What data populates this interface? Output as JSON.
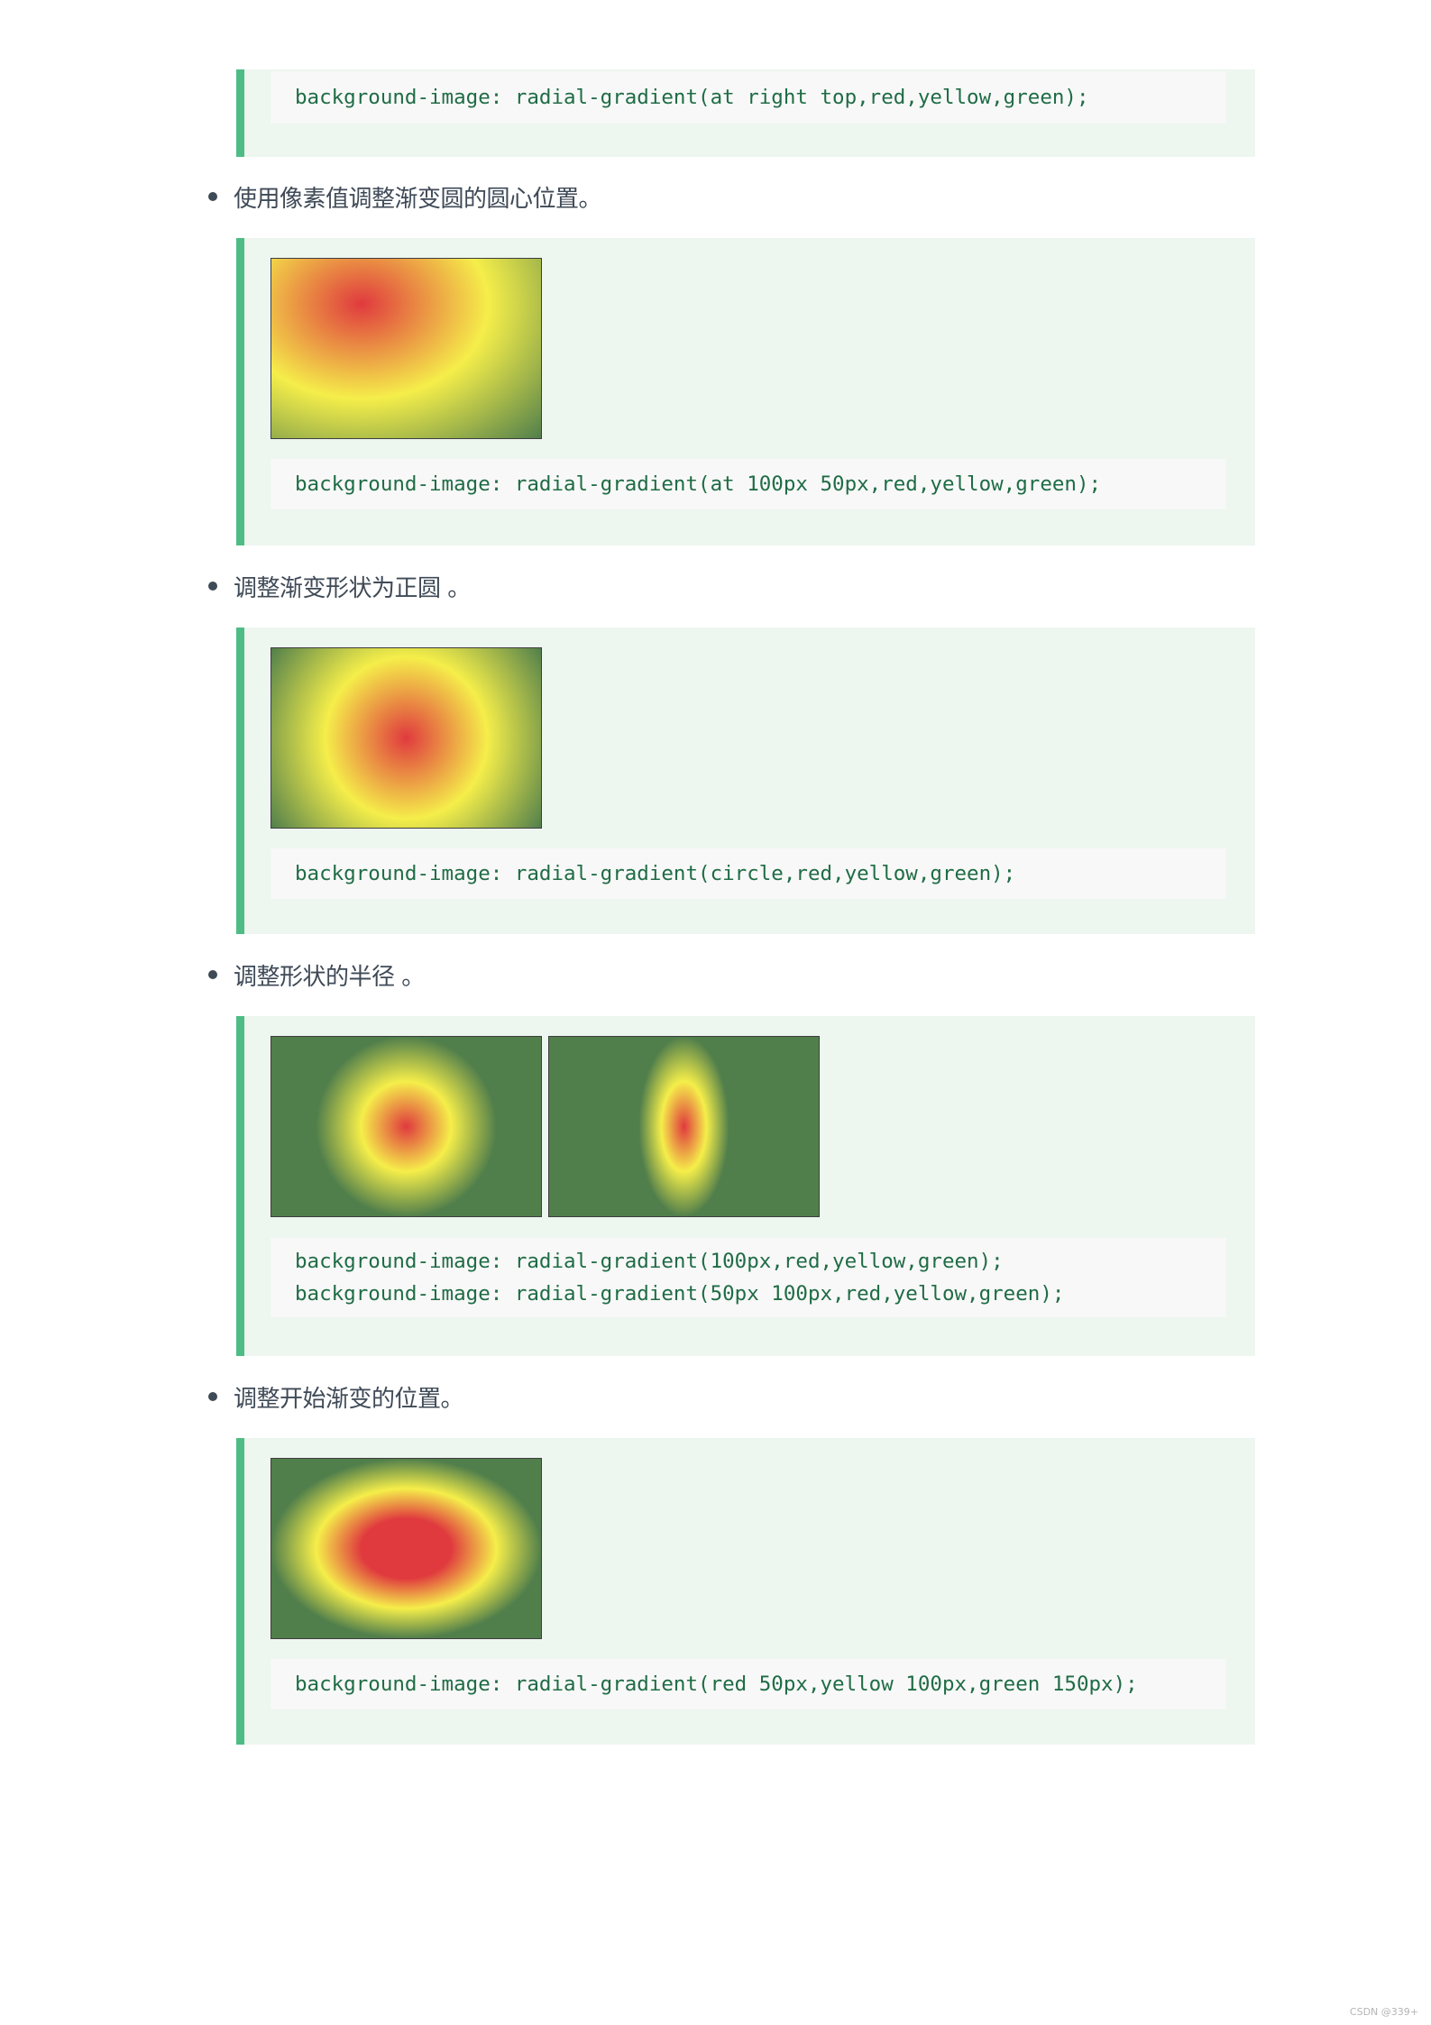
{
  "sections": [
    {
      "code_lines": [
        "background-image: radial-gradient(at right top,red,yellow,green);"
      ]
    },
    {
      "bullet": "使用像素值调整渐变圆的圆心位置。",
      "demos": [
        "radial-gradient-at-pixel-demo"
      ],
      "code_lines": [
        "background-image: radial-gradient(at 100px 50px,red,yellow,green);"
      ]
    },
    {
      "bullet": "调整渐变形状为正圆 。",
      "demos": [
        "radial-gradient-circle-demo"
      ],
      "code_lines": [
        "background-image: radial-gradient(circle,red,yellow,green);"
      ]
    },
    {
      "bullet": "调整形状的半径 。",
      "demos": [
        "radial-gradient-radius-demo",
        "radial-gradient-ellipse-radius-demo"
      ],
      "code_lines": [
        "background-image: radial-gradient(100px,red,yellow,green);",
        "background-image: radial-gradient(50px 100px,red,yellow,green);"
      ]
    },
    {
      "bullet": "调整开始渐变的位置。",
      "demos": [
        "radial-gradient-color-stops-demo"
      ],
      "code_lines": [
        "background-image: radial-gradient(red 50px,yellow 100px,green 150px);"
      ]
    }
  ],
  "watermark": "CSDN @339+",
  "colors": {
    "accent_bar": "#4ebd85",
    "block_bg": "#edf6ef",
    "code_bg": "#f8f8f8",
    "code_text": "#1f6c45",
    "body_text": "#3f4a57"
  }
}
